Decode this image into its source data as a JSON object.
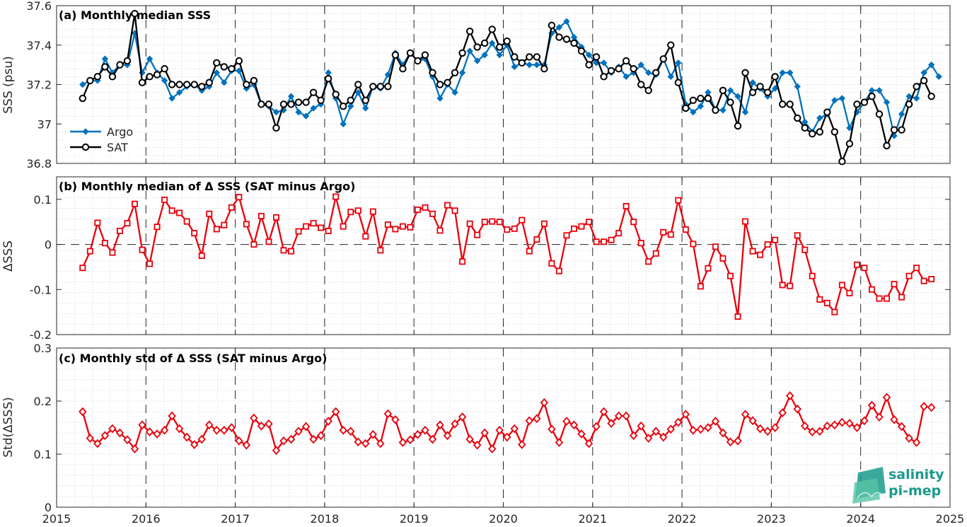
{
  "logo": {
    "line1": "salinity",
    "line2": "pi-mep"
  },
  "colors": {
    "argo": "#0072bd",
    "sat": "#000000",
    "delta": "#e8000b",
    "logo": "#1a9a8c"
  },
  "chart_data": [
    {
      "type": "line",
      "title": "(a) Monthly median SSS",
      "ylabel": "SSS (psu)",
      "xlim": [
        2015,
        2025
      ],
      "ylim": [
        36.8,
        37.6
      ],
      "yticks": [
        "36.8",
        "37",
        "37.2",
        "37.4",
        "37.6"
      ],
      "xticks": [
        "2015",
        "2016",
        "2017",
        "2018",
        "2019",
        "2020",
        "2021",
        "2022",
        "2023",
        "2024",
        "2025"
      ],
      "grid": true,
      "legend": "left",
      "start": "2015-04",
      "series": [
        {
          "name": "Argo",
          "values": [
            37.2,
            37.22,
            37.22,
            37.33,
            37.26,
            37.3,
            37.3,
            37.46,
            37.26,
            37.33,
            37.26,
            37.22,
            37.13,
            37.16,
            37.19,
            37.2,
            37.17,
            37.19,
            37.26,
            37.21,
            37.27,
            37.27,
            37.18,
            37.2,
            37.1,
            37.09,
            37.06,
            37.07,
            37.14,
            37.06,
            37.04,
            37.08,
            37.1,
            37.26,
            37.13,
            37.0,
            37.09,
            37.16,
            37.08,
            37.19,
            37.18,
            37.25,
            37.36,
            37.3,
            37.36,
            37.32,
            37.33,
            37.24,
            37.13,
            37.2,
            37.16,
            37.26,
            37.37,
            37.32,
            37.35,
            37.41,
            37.35,
            37.4,
            37.29,
            37.31,
            37.3,
            37.3,
            37.3,
            37.46,
            37.49,
            37.52,
            37.44,
            37.39,
            37.35,
            37.31,
            37.31,
            37.26,
            37.29,
            37.24,
            37.26,
            37.3,
            37.26,
            37.25,
            37.33,
            37.24,
            37.31,
            37.1,
            37.06,
            37.09,
            37.16,
            37.07,
            37.07,
            37.17,
            37.14,
            37.06,
            37.21,
            37.18,
            37.14,
            37.18,
            37.26,
            37.26,
            37.19,
            37.01,
            36.96,
            37.03,
            37.05,
            37.12,
            37.13,
            36.98,
            37.06,
            37.11,
            37.17,
            37.17,
            37.11,
            36.94,
            37.05,
            37.14,
            37.13,
            37.26,
            37.3,
            37.24
          ]
        },
        {
          "name": "SAT",
          "values": [
            37.13,
            37.22,
            37.24,
            37.29,
            37.24,
            37.3,
            37.32,
            37.56,
            37.21,
            37.24,
            37.25,
            37.28,
            37.2,
            37.2,
            37.2,
            37.2,
            37.19,
            37.21,
            37.31,
            37.29,
            37.28,
            37.32,
            37.2,
            37.22,
            37.1,
            37.1,
            36.98,
            37.1,
            37.1,
            37.11,
            37.11,
            37.16,
            37.12,
            37.23,
            37.15,
            37.09,
            37.12,
            37.2,
            37.12,
            37.19,
            37.19,
            37.19,
            37.35,
            37.28,
            37.36,
            37.32,
            37.35,
            37.26,
            37.2,
            37.21,
            37.26,
            37.36,
            37.47,
            37.39,
            37.41,
            37.48,
            37.39,
            37.42,
            37.34,
            37.31,
            37.34,
            37.34,
            37.28,
            37.5,
            37.44,
            37.43,
            37.41,
            37.37,
            37.3,
            37.34,
            37.24,
            37.27,
            37.28,
            37.32,
            37.28,
            37.2,
            37.17,
            37.26,
            37.33,
            37.4,
            37.21,
            37.08,
            37.12,
            37.13,
            37.13,
            37.07,
            37.17,
            37.11,
            36.99,
            37.26,
            37.16,
            37.19,
            37.16,
            37.24,
            37.1,
            37.1,
            37.03,
            36.98,
            36.95,
            36.96,
            37.06,
            36.96,
            36.81,
            36.9,
            37.1,
            37.11,
            37.14,
            37.05,
            36.89,
            36.97,
            36.97,
            37.1,
            37.19,
            37.22,
            37.14
          ]
        }
      ]
    },
    {
      "type": "line",
      "title": "(b) Monthly median of Δ SSS (SAT minus Argo)",
      "ylabel": "ΔSSS",
      "xlim": [
        2015,
        2025
      ],
      "ylim": [
        -0.2,
        0.15
      ],
      "yticks": [
        "-0.2",
        "-0.1",
        "0",
        "0.1"
      ],
      "xticks": [
        "2015",
        "2016",
        "2017",
        "2018",
        "2019",
        "2020",
        "2021",
        "2022",
        "2023",
        "2024",
        "2025"
      ],
      "grid": true,
      "start": "2015-04",
      "series": [
        {
          "values": [
            -0.052,
            -0.015,
            0.048,
            0.003,
            -0.018,
            0.03,
            0.047,
            0.09,
            -0.012,
            -0.043,
            0.039,
            0.099,
            0.075,
            0.07,
            0.051,
            0.025,
            -0.025,
            0.068,
            0.034,
            0.043,
            0.082,
            0.105,
            0.045,
            0.0,
            0.063,
            0.006,
            0.06,
            -0.013,
            -0.015,
            0.029,
            0.04,
            0.047,
            0.037,
            0.03,
            0.106,
            0.04,
            0.072,
            0.075,
            0.018,
            0.073,
            -0.013,
            0.044,
            0.034,
            0.04,
            0.038,
            0.077,
            0.082,
            0.068,
            0.031,
            0.087,
            0.075,
            -0.038,
            0.046,
            0.021,
            0.05,
            0.051,
            0.05,
            0.033,
            0.035,
            0.054,
            -0.015,
            0.011,
            0.046,
            -0.042,
            -0.059,
            0.02,
            0.035,
            0.04,
            0.05,
            0.006,
            0.006,
            0.01,
            0.025,
            0.085,
            0.05,
            0.003,
            -0.038,
            -0.02,
            0.027,
            0.022,
            0.098,
            0.033,
            0.001,
            -0.093,
            -0.053,
            -0.005,
            -0.031,
            -0.07,
            -0.16,
            0.051,
            -0.015,
            -0.023,
            0.0,
            0.01,
            -0.09,
            -0.092,
            0.02,
            -0.012,
            -0.07,
            -0.122,
            -0.13,
            -0.15,
            -0.09,
            -0.108,
            -0.045,
            -0.052,
            -0.1,
            -0.12,
            -0.12,
            -0.088,
            -0.117,
            -0.07,
            -0.052,
            -0.081,
            -0.077
          ]
        }
      ]
    },
    {
      "type": "line",
      "title": "(c) Monthly std of Δ SSS (SAT minus Argo)",
      "ylabel": "Std(ΔSSS)",
      "xlim": [
        2015,
        2025
      ],
      "ylim": [
        0,
        0.3
      ],
      "yticks": [
        "0",
        "0.1",
        "0.2",
        "0.3"
      ],
      "xticks": [
        "2015",
        "2016",
        "2017",
        "2018",
        "2019",
        "2020",
        "2021",
        "2022",
        "2023",
        "2024",
        "2025"
      ],
      "grid": true,
      "start": "2015-04",
      "series": [
        {
          "values": [
            0.18,
            0.13,
            0.12,
            0.135,
            0.148,
            0.14,
            0.127,
            0.11,
            0.155,
            0.142,
            0.138,
            0.145,
            0.172,
            0.148,
            0.132,
            0.118,
            0.128,
            0.155,
            0.145,
            0.145,
            0.15,
            0.125,
            0.117,
            0.168,
            0.153,
            0.157,
            0.107,
            0.125,
            0.128,
            0.143,
            0.152,
            0.128,
            0.135,
            0.162,
            0.18,
            0.145,
            0.143,
            0.123,
            0.12,
            0.137,
            0.12,
            0.176,
            0.165,
            0.122,
            0.127,
            0.137,
            0.145,
            0.128,
            0.155,
            0.135,
            0.157,
            0.17,
            0.128,
            0.117,
            0.14,
            0.11,
            0.145,
            0.132,
            0.148,
            0.118,
            0.163,
            0.167,
            0.197,
            0.147,
            0.122,
            0.162,
            0.155,
            0.138,
            0.12,
            0.152,
            0.18,
            0.158,
            0.172,
            0.172,
            0.135,
            0.153,
            0.13,
            0.143,
            0.132,
            0.147,
            0.16,
            0.175,
            0.145,
            0.147,
            0.15,
            0.162,
            0.14,
            0.123,
            0.125,
            0.175,
            0.163,
            0.148,
            0.143,
            0.15,
            0.178,
            0.21,
            0.185,
            0.153,
            0.142,
            0.143,
            0.153,
            0.155,
            0.16,
            0.158,
            0.15,
            0.163,
            0.192,
            0.17,
            0.207,
            0.165,
            0.152,
            0.13,
            0.122,
            0.19,
            0.188
          ]
        }
      ]
    }
  ]
}
